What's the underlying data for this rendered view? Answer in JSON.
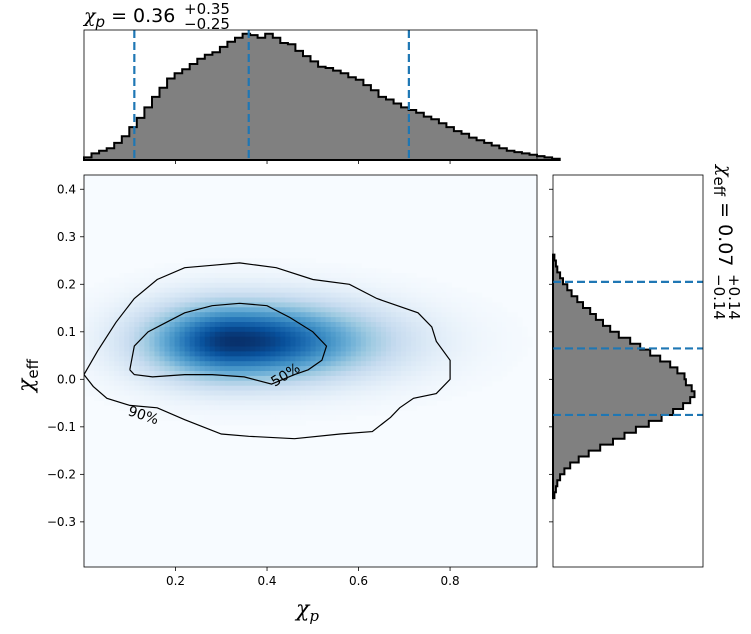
{
  "chart_data": {
    "type": "corner",
    "x_param": {
      "symbol": "χ",
      "subscript": "p",
      "xlim": [
        0.0,
        0.99
      ],
      "xticks": [
        0.2,
        0.4,
        0.6,
        0.8
      ],
      "xtick_labels": [
        "0.2",
        "0.4",
        "0.6",
        "0.8"
      ],
      "median": 0.36,
      "plus": 0.35,
      "minus": 0.25,
      "title_prefix": "χ",
      "title_sub": "p",
      "title_eq": " = 0.36",
      "title_sup": "+0.35",
      "title_inf": "−0.25",
      "dashed_lines": [
        0.11,
        0.36,
        0.71
      ],
      "hist_bin_edges_start": 0.0,
      "hist_bin_width": 0.0165,
      "hist_counts": [
        2,
        5,
        7,
        9,
        13,
        18,
        25,
        32,
        40,
        48,
        55,
        62,
        66,
        69,
        73,
        77,
        80,
        82,
        86,
        90,
        93,
        96,
        95,
        93,
        96,
        93,
        89,
        88,
        83,
        79,
        75,
        71,
        70,
        68,
        66,
        63,
        61,
        57,
        53,
        48,
        46,
        43,
        40,
        38,
        36,
        33,
        31,
        28,
        25,
        22,
        20,
        17,
        15,
        13,
        11,
        9,
        7,
        6,
        5,
        4,
        3,
        2,
        1
      ]
    },
    "y_param": {
      "symbol": "χ",
      "subscript": "eff",
      "ylim": [
        -0.395,
        0.43
      ],
      "yticks": [
        -0.3,
        -0.2,
        -0.1,
        0.0,
        0.1,
        0.2,
        0.3,
        0.4
      ],
      "ytick_labels": [
        "−0.3",
        "−0.2",
        "−0.1",
        "0.0",
        "0.1",
        "0.2",
        "0.3",
        "0.4"
      ],
      "median": 0.07,
      "plus": 0.14,
      "minus": 0.14,
      "title_prefix": "χ",
      "title_sub": "eff",
      "title_eq": " = 0.07",
      "title_sup": "+0.14",
      "title_inf": "−0.14",
      "dashed_lines": [
        -0.075,
        0.065,
        0.205
      ],
      "hist_bin_edges_start": -0.25,
      "hist_bin_width": 0.0125,
      "hist_counts": [
        1,
        2,
        3,
        5,
        8,
        12,
        18,
        25,
        33,
        42,
        50,
        58,
        67,
        76,
        84,
        91,
        96,
        99,
        97,
        93,
        92,
        87,
        82,
        75,
        68,
        61,
        54,
        46,
        40,
        35,
        30,
        26,
        21,
        17,
        13,
        10,
        7,
        5,
        3,
        2,
        1
      ]
    },
    "density": {
      "x_center": 0.33,
      "y_center": 0.08,
      "x_sigma": 0.13,
      "y_sigma": 0.055,
      "colormap": "Blues"
    },
    "contours": [
      {
        "label": "50%",
        "label_at": [
          0.44,
          0.01
        ],
        "points": [
          [
            0.1,
            0.02
          ],
          [
            0.11,
            0.07
          ],
          [
            0.14,
            0.1
          ],
          [
            0.18,
            0.12
          ],
          [
            0.22,
            0.14
          ],
          [
            0.28,
            0.155
          ],
          [
            0.34,
            0.16
          ],
          [
            0.4,
            0.155
          ],
          [
            0.45,
            0.13
          ],
          [
            0.5,
            0.1
          ],
          [
            0.53,
            0.07
          ],
          [
            0.52,
            0.04
          ],
          [
            0.49,
            0.02
          ],
          [
            0.46,
            0.01
          ],
          [
            0.41,
            -0.01
          ],
          [
            0.35,
            0.005
          ],
          [
            0.28,
            0.01
          ],
          [
            0.22,
            0.01
          ],
          [
            0.15,
            0.005
          ],
          [
            0.11,
            0.01
          ],
          [
            0.1,
            0.02
          ]
        ]
      },
      {
        "label": "90%",
        "label_at": [
          0.13,
          -0.075
        ],
        "points": [
          [
            0.0,
            0.01
          ],
          [
            0.03,
            0.06
          ],
          [
            0.07,
            0.12
          ],
          [
            0.11,
            0.17
          ],
          [
            0.16,
            0.21
          ],
          [
            0.22,
            0.235
          ],
          [
            0.28,
            0.24
          ],
          [
            0.34,
            0.245
          ],
          [
            0.42,
            0.235
          ],
          [
            0.5,
            0.21
          ],
          [
            0.58,
            0.2
          ],
          [
            0.64,
            0.17
          ],
          [
            0.73,
            0.14
          ],
          [
            0.76,
            0.11
          ],
          [
            0.77,
            0.08
          ],
          [
            0.8,
            0.04
          ],
          [
            0.8,
            0.0
          ],
          [
            0.77,
            -0.03
          ],
          [
            0.72,
            -0.04
          ],
          [
            0.69,
            -0.06
          ],
          [
            0.67,
            -0.08
          ],
          [
            0.63,
            -0.11
          ],
          [
            0.56,
            -0.115
          ],
          [
            0.46,
            -0.125
          ],
          [
            0.36,
            -0.12
          ],
          [
            0.3,
            -0.115
          ],
          [
            0.22,
            -0.085
          ],
          [
            0.16,
            -0.06
          ],
          [
            0.1,
            -0.055
          ],
          [
            0.05,
            -0.04
          ],
          [
            0.02,
            -0.015
          ],
          [
            0.0,
            0.01
          ]
        ]
      }
    ],
    "colors": {
      "hist_fill": "#808080",
      "hist_edge": "#000000",
      "dashed": "#1f77b4",
      "density_max": "#08306b"
    }
  }
}
